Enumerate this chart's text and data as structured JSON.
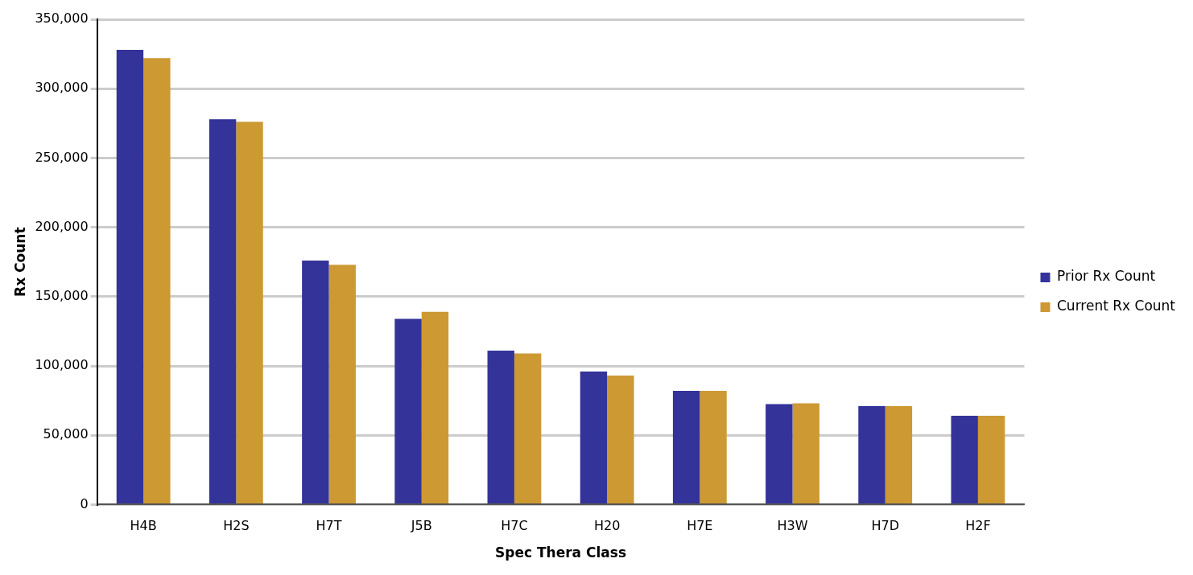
{
  "chart_data": {
    "type": "bar",
    "xlabel": "Spec Thera Class",
    "ylabel": "Rx Count",
    "categories": [
      "H4B",
      "H2S",
      "H7T",
      "J5B",
      "H7C",
      "H20",
      "H7E",
      "H3W",
      "H7D",
      "H2F"
    ],
    "series": [
      {
        "name": "Prior Rx Count",
        "color": "#333399",
        "values": [
          328000,
          278000,
          176000,
          134000,
          111000,
          96000,
          82000,
          72500,
          71000,
          64000
        ]
      },
      {
        "name": "Current Rx Count",
        "color": "#cc9933",
        "values": [
          322000,
          276000,
          173000,
          139000,
          109000,
          93000,
          82000,
          73000,
          71000,
          64000
        ]
      }
    ],
    "ylim": [
      0,
      350000
    ],
    "yticks": [
      {
        "value": 0,
        "label": "0"
      },
      {
        "value": 50000,
        "label": "50,000"
      },
      {
        "value": 100000,
        "label": "100,000"
      },
      {
        "value": 150000,
        "label": "150,000"
      },
      {
        "value": 200000,
        "label": "200,000"
      },
      {
        "value": 250000,
        "label": "250,000"
      },
      {
        "value": 300000,
        "label": "300,000"
      },
      {
        "value": 350000,
        "label": "350,000"
      }
    ],
    "grid": "y",
    "legend": "right"
  }
}
